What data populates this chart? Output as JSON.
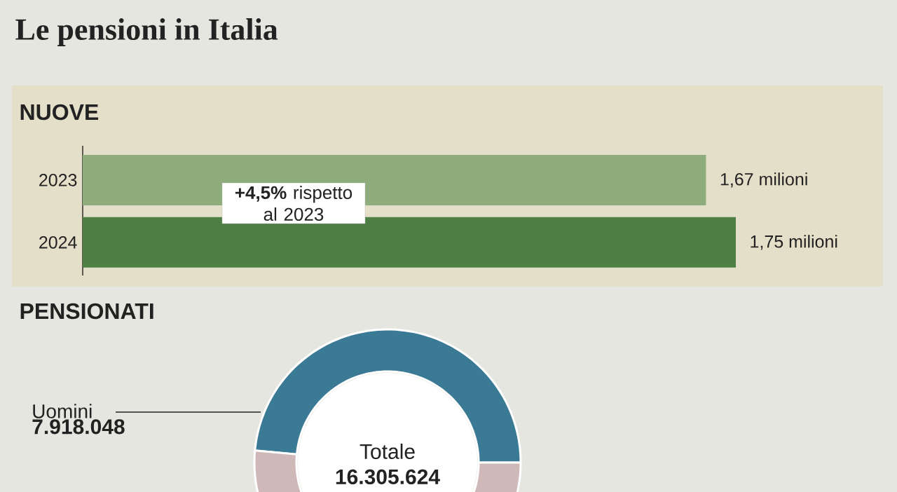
{
  "chart_data": [
    {
      "type": "bar",
      "orientation": "horizontal",
      "title": "Le pensioni in Italia",
      "subtitle": "NUOVE",
      "categories": [
        "2023",
        "2024"
      ],
      "values": [
        1.67,
        1.75
      ],
      "colors": [
        "#8fac7d",
        "#4e7f45"
      ],
      "value_labels": [
        "1,67 milioni",
        "1,75 milioni"
      ],
      "annotations": [
        "**+4,5%** rispetto al 2023"
      ]
    },
    {
      "type": "donut",
      "title": "PENSIONATI",
      "categories": [
        "Uomini",
        null
      ],
      "values": [
        7918048,
        8387576
      ],
      "colors": [
        "#3b7a94",
        "#cfb8b8"
      ],
      "value_labels": [
        "7.918.048",
        null
      ],
      "annotations": [
        "Totale **16.305.624**"
      ]
    }
  ]
}
